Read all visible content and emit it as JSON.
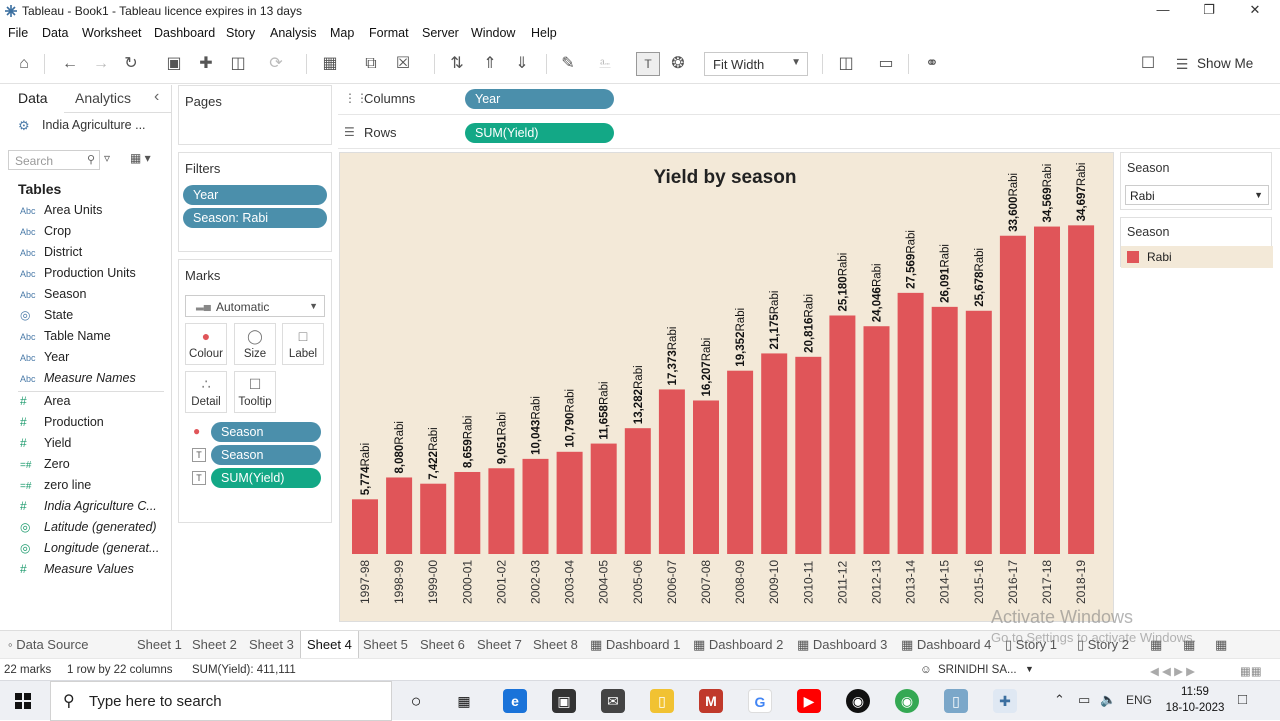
{
  "window": {
    "title": "Tableau - Book1 - Tableau licence expires in 13 days"
  },
  "menu": [
    "File",
    "Data",
    "Worksheet",
    "Dashboard",
    "Story",
    "Analysis",
    "Map",
    "Format",
    "Server",
    "Window",
    "Help"
  ],
  "toolbar": {
    "fit": "Fit Width",
    "show_me": "Show Me"
  },
  "datapane": {
    "tab_data": "Data",
    "tab_analytics": "Analytics",
    "datasource": "India Agriculture ...",
    "search_placeholder": "Search",
    "tables_heading": "Tables",
    "dimensions": [
      {
        "type": "Abc",
        "name": "Area Units"
      },
      {
        "type": "Abc",
        "name": "Crop"
      },
      {
        "type": "Abc",
        "name": "District"
      },
      {
        "type": "Abc",
        "name": "Production Units"
      },
      {
        "type": "Abc",
        "name": "Season"
      },
      {
        "type": "globe",
        "name": "State"
      },
      {
        "type": "Abc",
        "name": "Table Name"
      },
      {
        "type": "Abc",
        "name": "Year"
      },
      {
        "type": "Abc",
        "name": "Measure Names"
      }
    ],
    "measures": [
      {
        "type": "#",
        "name": "Area"
      },
      {
        "type": "#",
        "name": "Production"
      },
      {
        "type": "#",
        "name": "Yield"
      },
      {
        "type": "=#",
        "name": "Zero"
      },
      {
        "type": "=#",
        "name": "zero line"
      },
      {
        "type": "#",
        "name": "India Agriculture C..."
      },
      {
        "type": "globe",
        "name": "Latitude (generated)"
      },
      {
        "type": "globe",
        "name": "Longitude (generat..."
      },
      {
        "type": "#",
        "name": "Measure Values"
      }
    ]
  },
  "pages": {
    "title": "Pages"
  },
  "filters": {
    "title": "Filters",
    "items": [
      "Year",
      "Season: Rabi"
    ]
  },
  "marks": {
    "title": "Marks",
    "type": "Automatic",
    "buttons": [
      "Colour",
      "Size",
      "Label",
      "Detail",
      "Tooltip"
    ],
    "pills": [
      "Season",
      "Season",
      "SUM(Yield)"
    ]
  },
  "shelves": {
    "columns_label": "Columns",
    "columns_pill": "Year",
    "rows_label": "Rows",
    "rows_pill": "SUM(Yield)"
  },
  "season_filter": {
    "title": "Season",
    "value": "Rabi"
  },
  "season_legend": {
    "title": "Season",
    "item": "Rabi",
    "color": "#e05559"
  },
  "chart_data": {
    "type": "bar",
    "title": "Yield by season",
    "categories": [
      "1997-98",
      "1998-99",
      "1999-00",
      "2000-01",
      "2001-02",
      "2002-03",
      "2003-04",
      "2004-05",
      "2005-06",
      "2006-07",
      "2007-08",
      "2008-09",
      "2009-10",
      "2010-11",
      "2011-12",
      "2012-13",
      "2013-14",
      "2014-15",
      "2015-16",
      "2016-17",
      "2017-18",
      "2018-19"
    ],
    "series": [
      {
        "name": "Rabi",
        "values": [
          5774,
          8080,
          7422,
          8659,
          9051,
          10043,
          10790,
          11658,
          13282,
          17373,
          16207,
          19352,
          21175,
          20816,
          25180,
          24046,
          27569,
          26091,
          25678,
          33600,
          34569,
          34697
        ]
      }
    ],
    "label_suffix": "Rabi",
    "bar_color": "#e05559",
    "background": "#f3e9d8",
    "ylim": [
      0,
      36000
    ]
  },
  "sheet_tabs": [
    "Data Source",
    "Sheet 1",
    "Sheet 2",
    "Sheet 3",
    "Sheet 4",
    "Sheet 5",
    "Sheet 6",
    "Sheet 7",
    "Sheet 8",
    "Dashboard 1",
    "Dashboard 2",
    "Dashboard 3",
    "Dashboard 4",
    "Story 1",
    "Story 2"
  ],
  "active_tab": "Sheet 4",
  "status": {
    "marks": "22 marks",
    "dims": "1 row  by  22 columns",
    "sum": "SUM(Yield): 411,111",
    "user": "SRINIDHI SA..."
  },
  "watermark": {
    "line1": "Activate Windows",
    "line2": "Go to Settings to activate Windows."
  },
  "taskbar": {
    "search_placeholder": "Type here to search",
    "lang": "ENG",
    "time": "11:59",
    "date": "18-10-2023"
  }
}
